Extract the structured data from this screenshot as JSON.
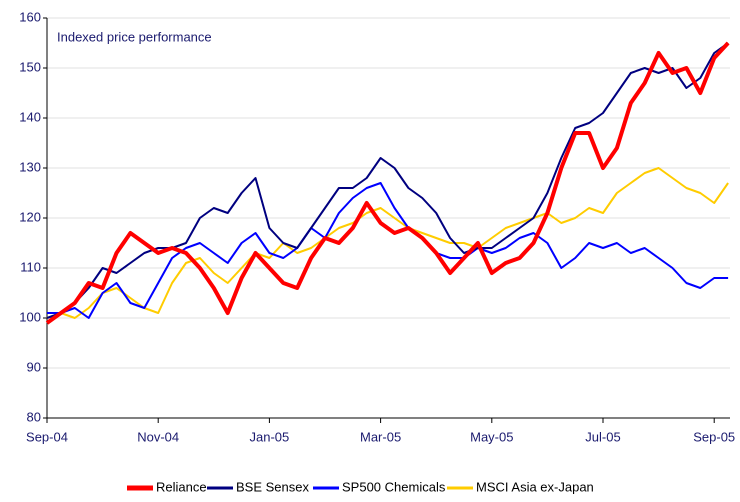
{
  "chart_data": {
    "type": "line",
    "annotation": "Indexed price performance",
    "categories": [
      "Sep-04",
      null,
      null,
      null,
      null,
      null,
      null,
      null,
      "Nov-04",
      null,
      null,
      null,
      null,
      null,
      null,
      null,
      "Jan-05",
      null,
      null,
      null,
      null,
      null,
      null,
      null,
      "Mar-05",
      null,
      null,
      null,
      null,
      null,
      null,
      null,
      "May-05",
      null,
      null,
      null,
      null,
      null,
      null,
      null,
      "Jul-05",
      null,
      null,
      null,
      null,
      null,
      null,
      null,
      "Sep-05",
      null
    ],
    "series": [
      {
        "name": "Reliance",
        "color": "#ff0000",
        "width": 4,
        "values": [
          99,
          101,
          103,
          107,
          106,
          113,
          117,
          115,
          113,
          114,
          113,
          110,
          106,
          101,
          108,
          113,
          110,
          107,
          106,
          112,
          116,
          115,
          118,
          123,
          119,
          117,
          118,
          116,
          113,
          109,
          112,
          115,
          109,
          111,
          112,
          115,
          121,
          130,
          137,
          137,
          130,
          134,
          143,
          147,
          153,
          149,
          150,
          145,
          152,
          155
        ]
      },
      {
        "name": "BSE Sensex",
        "color": "#000080",
        "width": 2,
        "values": [
          100,
          101,
          103,
          106,
          110,
          109,
          111,
          113,
          114,
          114,
          115,
          120,
          122,
          121,
          125,
          128,
          118,
          115,
          114,
          118,
          122,
          126,
          126,
          128,
          132,
          130,
          126,
          124,
          121,
          116,
          113,
          114,
          114,
          116,
          118,
          120,
          125,
          132,
          138,
          139,
          141,
          145,
          149,
          150,
          149,
          150,
          146,
          148,
          153,
          155
        ]
      },
      {
        "name": "SP500 Chemicals",
        "color": "#0000ff",
        "width": 2,
        "values": [
          101,
          101,
          102,
          100,
          105,
          107,
          103,
          102,
          107,
          112,
          114,
          115,
          113,
          111,
          115,
          117,
          113,
          112,
          114,
          118,
          116,
          121,
          124,
          126,
          127,
          122,
          118,
          116,
          113,
          112,
          112,
          114,
          113,
          114,
          116,
          117,
          115,
          110,
          112,
          115,
          114,
          115,
          113,
          114,
          112,
          110,
          107,
          106,
          108,
          108
        ]
      },
      {
        "name": "MSCI Asia ex-Japan",
        "color": "#ffcc00",
        "width": 2,
        "values": [
          100,
          101,
          100,
          102,
          105,
          106,
          104,
          102,
          101,
          107,
          111,
          112,
          109,
          107,
          110,
          113,
          112,
          115,
          113,
          114,
          116,
          118,
          119,
          121,
          122,
          120,
          118,
          117,
          116,
          115,
          115,
          114,
          116,
          118,
          119,
          120,
          121,
          119,
          120,
          122,
          121,
          125,
          127,
          129,
          130,
          128,
          126,
          125,
          123,
          127
        ]
      }
    ],
    "ylim": [
      80,
      160
    ],
    "yticks": [
      80,
      90,
      100,
      110,
      120,
      130,
      140,
      150,
      160
    ],
    "grid": true,
    "legend": "bottom"
  }
}
